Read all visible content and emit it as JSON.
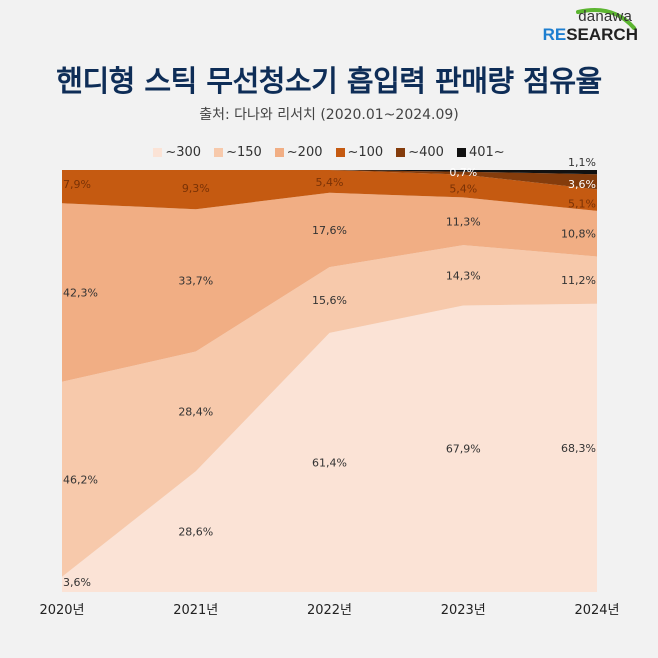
{
  "logo": {
    "top_text": "danawa",
    "bottom_accent": "RE",
    "bottom_rest": "SEARCH",
    "accent_color": "#1e7fd0",
    "swoosh_color": "#5cb531"
  },
  "chart_data": {
    "type": "area",
    "stacked": true,
    "normalized_percent": true,
    "title": "핸디형 스틱 무선청소기 흡입력 판매량 점유율",
    "subtitle": "출처: 다나와 리서치 (2020.01~2024.09)",
    "xlabel": "",
    "ylabel": "",
    "ylim": [
      0,
      100
    ],
    "grid": false,
    "legend_position": "top-center",
    "categories": [
      "2020년",
      "2021년",
      "2022년",
      "2023년",
      "2024년"
    ],
    "series": [
      {
        "name": "~300",
        "color": "#fbe3d6",
        "values": [
          3.6,
          28.6,
          61.4,
          67.9,
          68.3
        ],
        "labels": [
          "3.6%",
          "28.6%",
          "61.4%",
          "67.9%",
          "68.3%"
        ]
      },
      {
        "name": "~150",
        "color": "#f7c9ab",
        "values": [
          46.2,
          28.4,
          15.6,
          14.3,
          11.2
        ],
        "labels": [
          "46.2%",
          "28.4%",
          "15.6%",
          "14.3%",
          "11.2%"
        ]
      },
      {
        "name": "~200",
        "color": "#f1ae84",
        "values": [
          42.3,
          33.7,
          17.6,
          11.3,
          10.8
        ],
        "labels": [
          "42.3%",
          "33.7%",
          "17.6%",
          "11.3%",
          "10.8%"
        ]
      },
      {
        "name": "~100",
        "color": "#c55a11",
        "values": [
          7.9,
          9.3,
          5.4,
          5.4,
          5.1
        ],
        "labels": [
          "7.9%",
          "9.3%",
          "5.4%",
          "5.4%",
          "5.1%"
        ]
      },
      {
        "name": "~400",
        "color": "#843c0c",
        "values": [
          0,
          0,
          0,
          0.7,
          3.6
        ],
        "labels": [
          "",
          "",
          "",
          "0.7%",
          "3.6%"
        ]
      },
      {
        "name": "401~",
        "color": "#111111",
        "values": [
          0,
          0,
          0,
          0.4,
          1.1
        ],
        "labels": [
          "",
          "",
          "",
          "",
          "1.1%"
        ]
      }
    ]
  }
}
